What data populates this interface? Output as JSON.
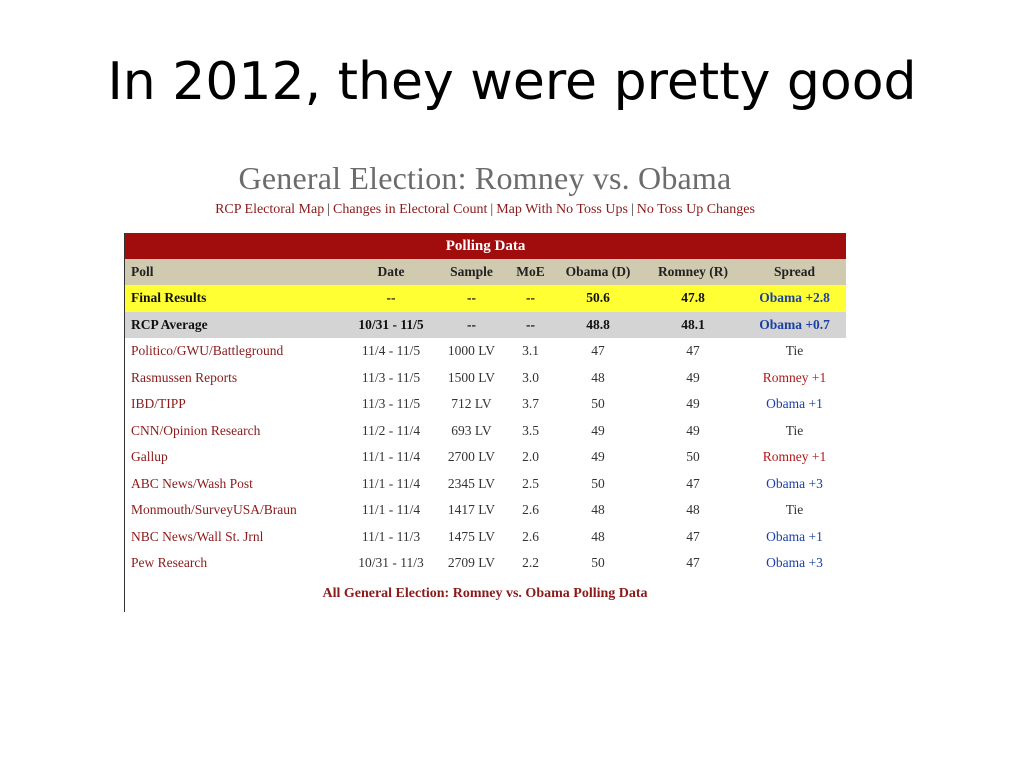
{
  "slide": {
    "title": "In 2012, they were pretty good"
  },
  "page": {
    "title": "General Election: Romney vs. Obama",
    "links": [
      "RCP Electoral Map",
      "Changes in Electoral Count",
      "Map With No Toss Ups",
      "No Toss Up Changes"
    ],
    "link_separator": "|"
  },
  "table": {
    "caption": "Polling Data",
    "headers": [
      "Poll",
      "Date",
      "Sample",
      "MoE",
      "Obama (D)",
      "Romney (R)",
      "Spread"
    ],
    "rows": [
      {
        "poll": "Final Results",
        "date": "--",
        "sample": "--",
        "moe": "--",
        "obama": "50.6",
        "romney": "47.8",
        "spread": "Obama +2.8",
        "kind": "final",
        "spread_color": "blue"
      },
      {
        "poll": "RCP Average",
        "date": "10/31 - 11/5",
        "sample": "--",
        "moe": "--",
        "obama": "48.8",
        "romney": "48.1",
        "spread": "Obama +0.7",
        "kind": "avg",
        "spread_color": "blue"
      },
      {
        "poll": "Politico/GWU/Battleground",
        "date": "11/4 - 11/5",
        "sample": "1000 LV",
        "moe": "3.1",
        "obama": "47",
        "romney": "47",
        "spread": "Tie",
        "kind": "data",
        "spread_color": "none"
      },
      {
        "poll": "Rasmussen Reports",
        "date": "11/3 - 11/5",
        "sample": "1500 LV",
        "moe": "3.0",
        "obama": "48",
        "romney": "49",
        "spread": "Romney +1",
        "kind": "data",
        "spread_color": "red"
      },
      {
        "poll": "IBD/TIPP",
        "date": "11/3 - 11/5",
        "sample": "712 LV",
        "moe": "3.7",
        "obama": "50",
        "romney": "49",
        "spread": "Obama +1",
        "kind": "data",
        "spread_color": "blue"
      },
      {
        "poll": "CNN/Opinion Research",
        "date": "11/2 - 11/4",
        "sample": "693 LV",
        "moe": "3.5",
        "obama": "49",
        "romney": "49",
        "spread": "Tie",
        "kind": "data",
        "spread_color": "none"
      },
      {
        "poll": "Gallup",
        "date": "11/1 - 11/4",
        "sample": "2700 LV",
        "moe": "2.0",
        "obama": "49",
        "romney": "50",
        "spread": "Romney +1",
        "kind": "data",
        "spread_color": "red"
      },
      {
        "poll": "ABC News/Wash Post",
        "date": "11/1 - 11/4",
        "sample": "2345 LV",
        "moe": "2.5",
        "obama": "50",
        "romney": "47",
        "spread": "Obama +3",
        "kind": "data",
        "spread_color": "blue"
      },
      {
        "poll": "Monmouth/SurveyUSA/Braun",
        "date": "11/1 - 11/4",
        "sample": "1417 LV",
        "moe": "2.6",
        "obama": "48",
        "romney": "48",
        "spread": "Tie",
        "kind": "data",
        "spread_color": "none"
      },
      {
        "poll": "NBC News/Wall St. Jrnl",
        "date": "11/1 - 11/3",
        "sample": "1475 LV",
        "moe": "2.6",
        "obama": "48",
        "romney": "47",
        "spread": "Obama +1",
        "kind": "data",
        "spread_color": "blue"
      },
      {
        "poll": "Pew Research",
        "date": "10/31 - 11/3",
        "sample": "2709 LV",
        "moe": "2.2",
        "obama": "50",
        "romney": "47",
        "spread": "Obama +3",
        "kind": "data",
        "spread_color": "blue"
      }
    ],
    "footer_link": "All General Election: Romney vs. Obama Polling Data"
  },
  "colors": {
    "header_bg": "#a10c0c",
    "colhdr_bg": "#cfcab0",
    "final_bg": "#ffff33",
    "avg_bg": "#d4d4d4",
    "link": "#8b1a1a",
    "obama_spread": "#1a3fa6",
    "romney_spread": "#b01818"
  }
}
